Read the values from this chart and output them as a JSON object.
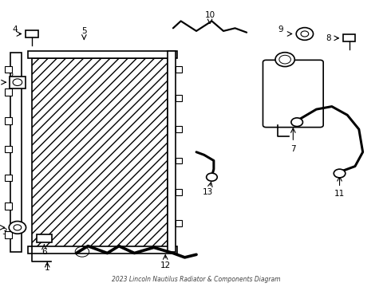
{
  "title": "2023 Lincoln Nautilus Radiator & Components Diagram",
  "bg_color": "#ffffff",
  "line_color": "#000000",
  "fig_width": 4.9,
  "fig_height": 3.6,
  "dpi": 100
}
